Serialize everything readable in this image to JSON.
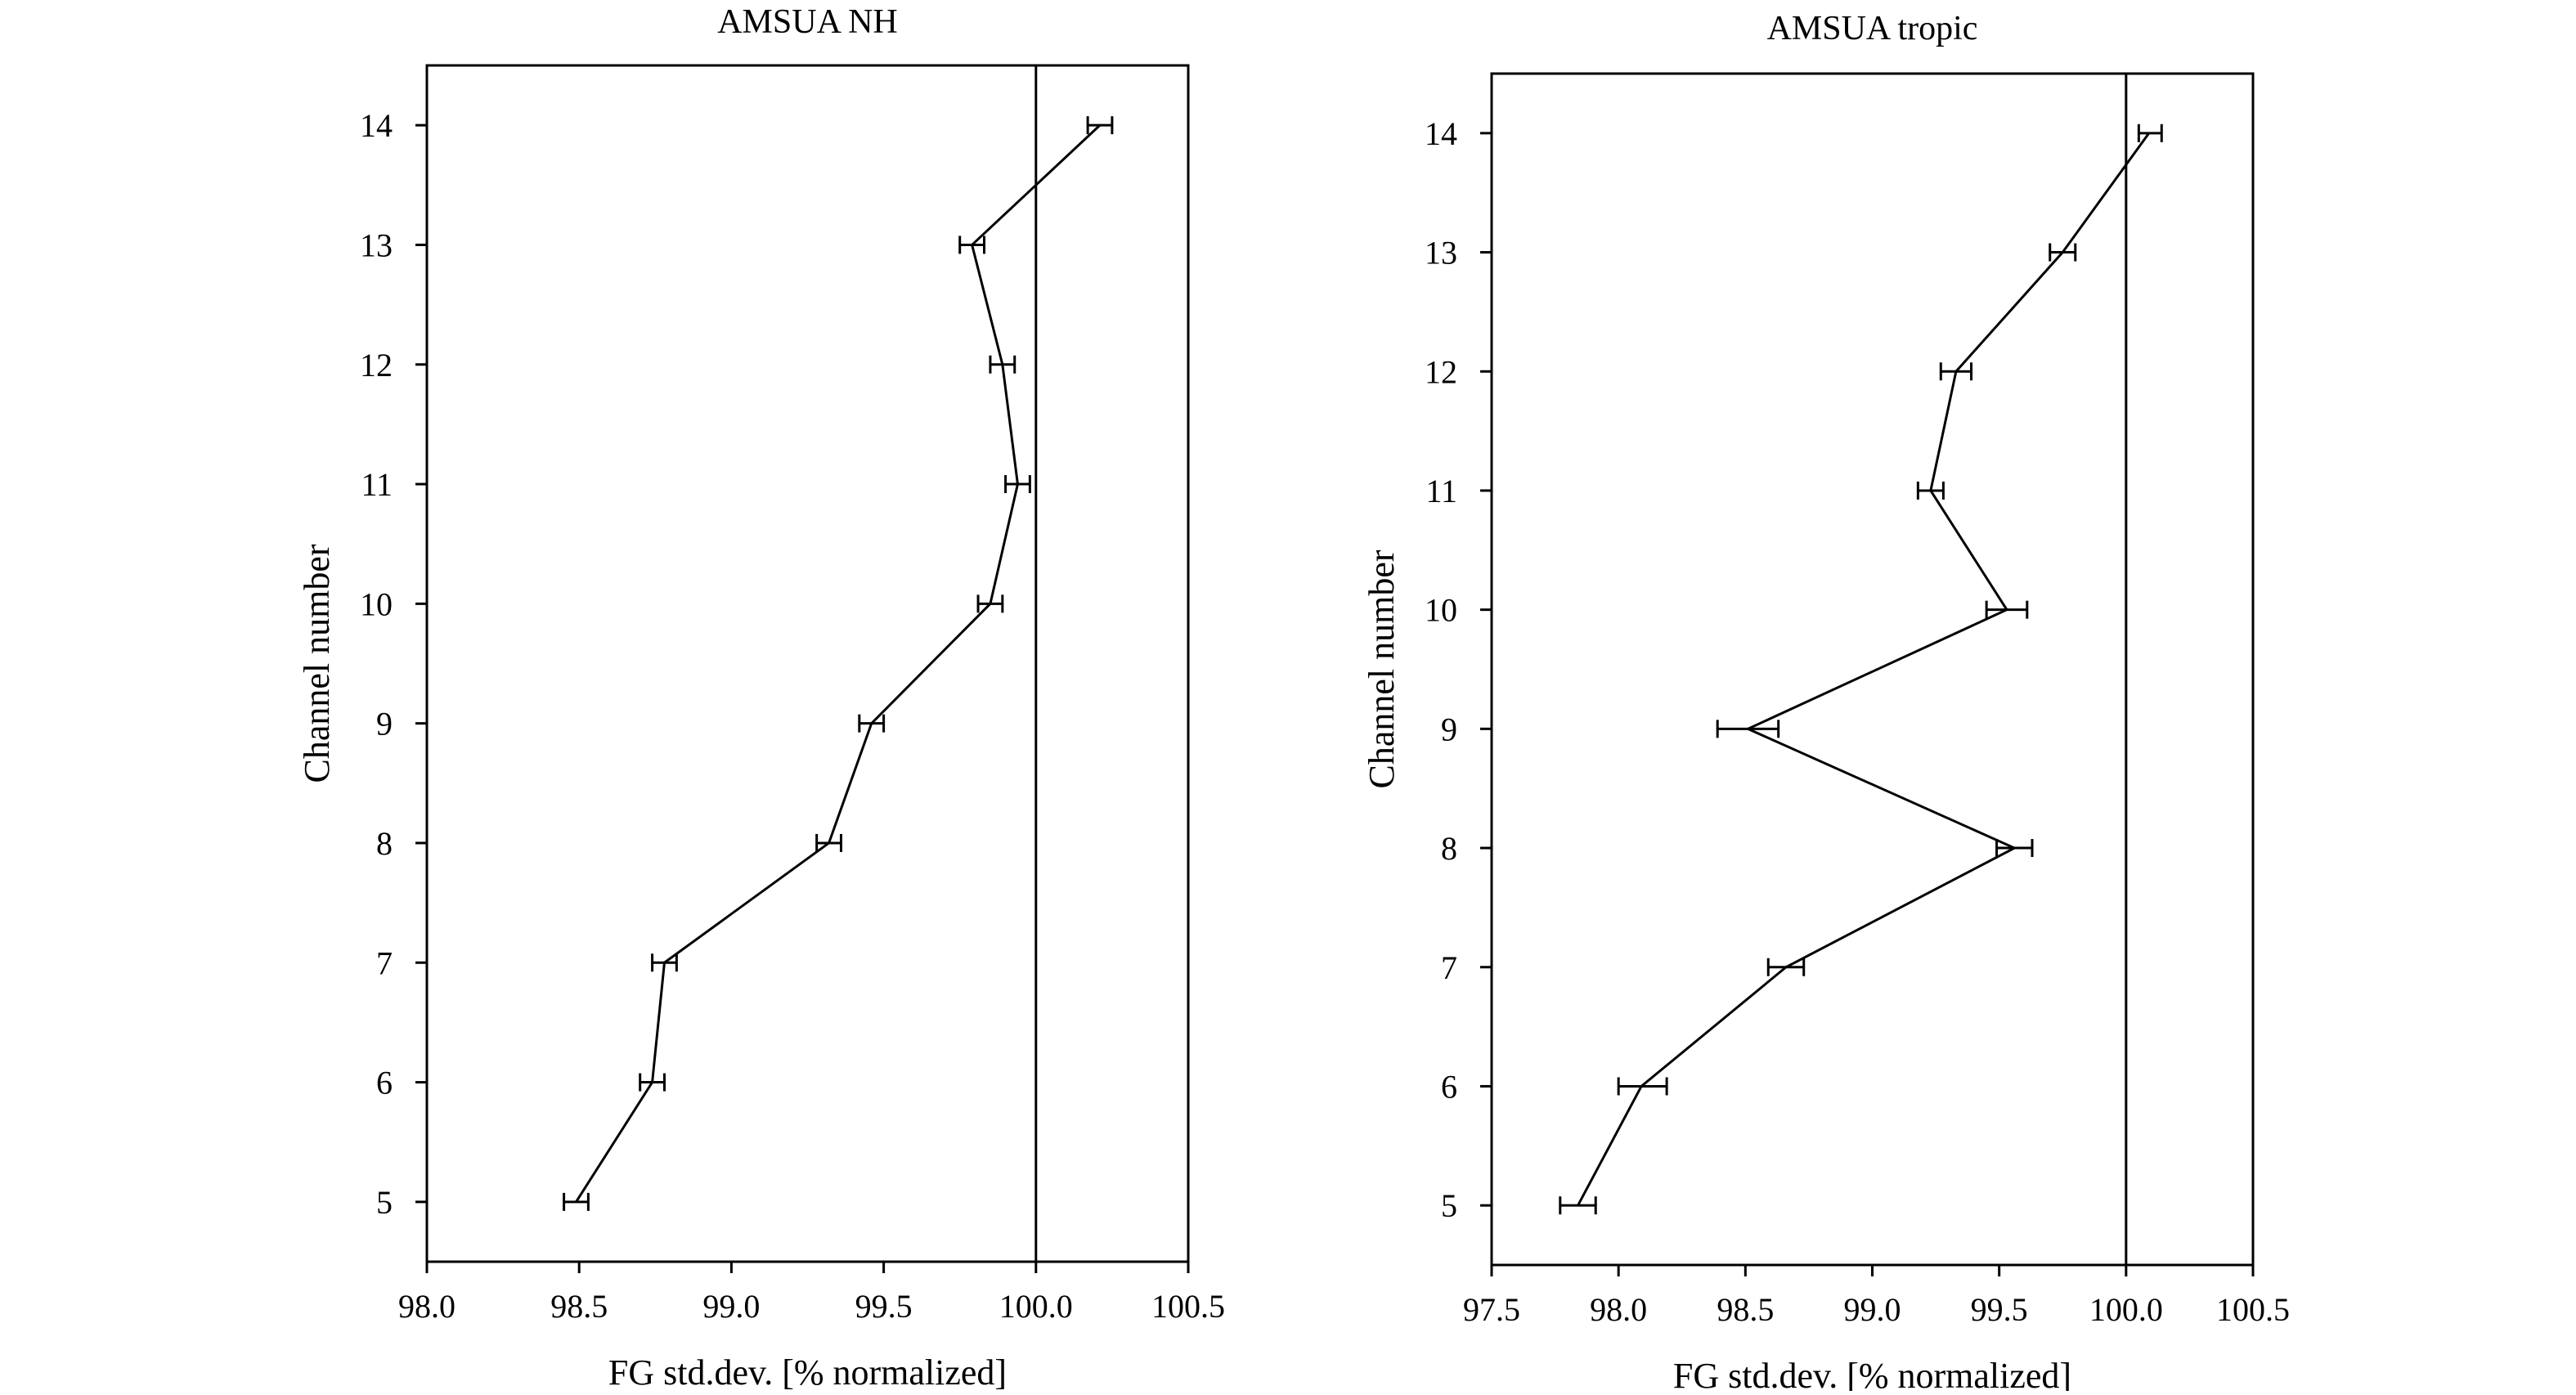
{
  "chart_data": [
    {
      "type": "line",
      "title": "AMSUA NH",
      "xlabel": "FG std.dev. [% normalized]",
      "ylabel": "Channel number",
      "xlim": [
        98.0,
        100.5
      ],
      "ylim": [
        4.5,
        14.5
      ],
      "xticks": [
        "98.0",
        "98.5",
        "99.0",
        "99.5",
        "100.0",
        "100.5"
      ],
      "yticks": [
        "5",
        "6",
        "7",
        "8",
        "9",
        "10",
        "11",
        "12",
        "13",
        "14"
      ],
      "reference_line_x": 100.0,
      "grid": false,
      "series": [
        {
          "x": [
            98.49,
            98.74,
            98.78,
            99.32,
            99.46,
            99.85,
            99.94,
            99.89,
            99.79,
            100.21
          ],
          "y": [
            5,
            6,
            7,
            8,
            9,
            10,
            11,
            12,
            13,
            14
          ],
          "error_low": [
            98.45,
            98.7,
            98.74,
            99.28,
            99.42,
            99.81,
            99.9,
            99.85,
            99.75,
            100.17
          ],
          "error_high": [
            98.53,
            98.78,
            98.82,
            99.36,
            99.5,
            99.89,
            99.98,
            99.93,
            99.83,
            100.25
          ]
        }
      ]
    },
    {
      "type": "line",
      "title": "AMSUA tropic",
      "xlabel": "FG std.dev. [% normalized]",
      "ylabel": "Channel number",
      "xlim": [
        97.5,
        100.5
      ],
      "ylim": [
        4.5,
        14.5
      ],
      "xticks": [
        "97.5",
        "98.0",
        "98.5",
        "99.0",
        "99.5",
        "100.0",
        "100.5"
      ],
      "yticks": [
        "5",
        "6",
        "7",
        "8",
        "9",
        "10",
        "11",
        "12",
        "13",
        "14"
      ],
      "reference_line_x": 100.0,
      "grid": false,
      "series": [
        {
          "x": [
            97.84,
            98.09,
            98.66,
            99.56,
            98.51,
            99.53,
            99.23,
            99.33,
            99.75,
            100.09
          ],
          "y": [
            5,
            6,
            7,
            8,
            9,
            10,
            11,
            12,
            13,
            14
          ],
          "error_low": [
            97.77,
            98.0,
            98.59,
            99.49,
            98.39,
            99.45,
            99.18,
            99.27,
            99.7,
            100.05
          ],
          "error_high": [
            97.91,
            98.19,
            98.73,
            99.63,
            98.63,
            99.61,
            99.28,
            99.39,
            99.8,
            100.14
          ]
        }
      ]
    }
  ]
}
